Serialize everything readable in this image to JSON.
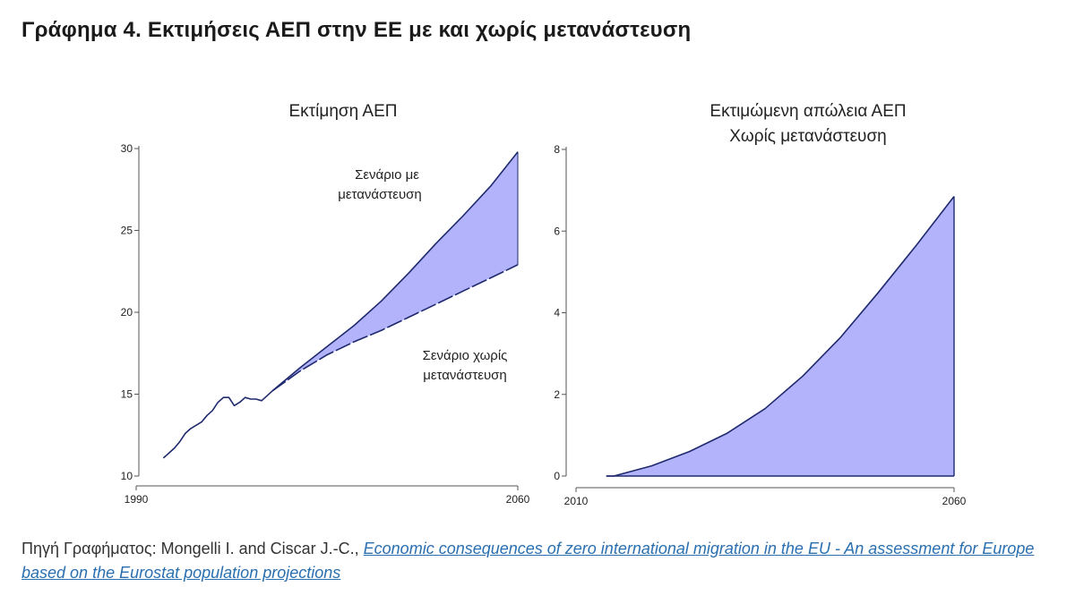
{
  "page_title": "Γράφημα 4. Εκτιμήσεις ΑΕΠ στην ΕΕ με και χωρίς μετανάστευση",
  "colors": {
    "fill": "#b3b3fb",
    "line": "#1f2a6e",
    "axis": "#555555"
  },
  "source": {
    "prefix": "Πηγή Γραφήματος: Mongelli I. and Ciscar J.-C., ",
    "link_text": "Economic consequences of zero international migration in the EU - An assessment for Europe based on the Eurostat population projections"
  },
  "chart_data": [
    {
      "type": "area",
      "title": "Εκτίμηση ΑΕΠ",
      "xlabel": "",
      "ylabel": "",
      "xlim": [
        1990,
        2060
      ],
      "ylim": [
        10,
        30
      ],
      "x_ticks": [
        "1990",
        "2060"
      ],
      "y_ticks": [
        "10",
        "15",
        "20",
        "25",
        "30"
      ],
      "grid": false,
      "annotations": [
        {
          "text": "Σενάριο με μετανάστευση",
          "series": "Σενάριο με μετανάστευση"
        },
        {
          "text": "Σενάριο χωρίς μετανάστευση",
          "series": "Σενάριο χωρίς μετανάστευση"
        }
      ],
      "history": {
        "x": [
          1995,
          1997,
          1998,
          1999,
          2000,
          2001,
          2002,
          2003,
          2004,
          2005,
          2006,
          2007,
          2008,
          2009,
          2010,
          2011,
          2012,
          2013,
          2014,
          2015
        ],
        "y": [
          11.1,
          11.7,
          12.1,
          12.6,
          12.9,
          13.1,
          13.3,
          13.7,
          14.0,
          14.5,
          14.8,
          14.8,
          14.3,
          14.5,
          14.8,
          14.7,
          14.7,
          14.6,
          14.9,
          15.2
        ]
      },
      "series": [
        {
          "name": "Σενάριο με μετανάστευση",
          "x": [
            2015,
            2020,
            2025,
            2030,
            2035,
            2040,
            2045,
            2050,
            2055,
            2060
          ],
          "y": [
            15.2,
            16.6,
            17.9,
            19.2,
            20.7,
            22.4,
            24.2,
            25.9,
            27.7,
            29.8
          ]
        },
        {
          "name": "Σενάριο χωρίς μετανάστευση",
          "x": [
            2015,
            2020,
            2025,
            2030,
            2035,
            2040,
            2045,
            2050,
            2055,
            2060
          ],
          "y": [
            15.2,
            16.4,
            17.4,
            18.2,
            18.9,
            19.7,
            20.5,
            21.3,
            22.1,
            22.9
          ]
        }
      ]
    },
    {
      "type": "area",
      "title": "Εκτιμώμενη απώλεια ΑΕΠ Χωρίς μετανάστευση",
      "title_lines": [
        "Εκτιμώμενη απώλεια ΑΕΠ",
        "Χωρίς μετανάστευση"
      ],
      "xlabel": "",
      "ylabel": "",
      "xlim": [
        2010,
        2060
      ],
      "ylim": [
        0,
        8
      ],
      "x_ticks": [
        "2010",
        "2060"
      ],
      "y_ticks": [
        "0",
        "2",
        "4",
        "6",
        "8"
      ],
      "grid": false,
      "series": [
        {
          "name": "",
          "x": [
            2014,
            2015,
            2020,
            2025,
            2030,
            2035,
            2040,
            2045,
            2050,
            2055,
            2060
          ],
          "y": [
            0,
            0,
            0.25,
            0.6,
            1.05,
            1.65,
            2.45,
            3.4,
            4.5,
            5.65,
            6.85
          ]
        }
      ]
    }
  ]
}
